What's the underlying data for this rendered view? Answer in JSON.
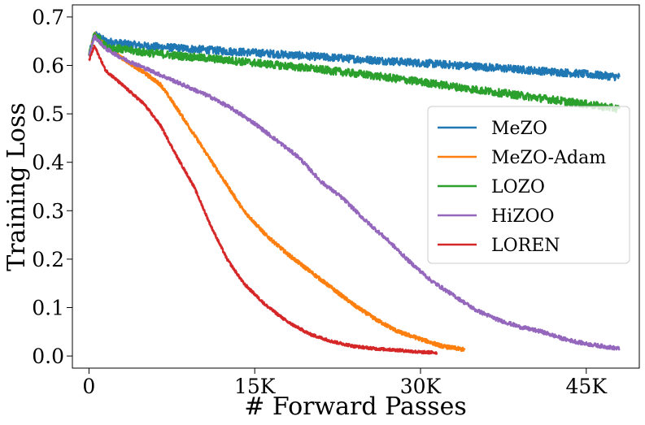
{
  "chart_data": {
    "type": "line",
    "title": "",
    "xlabel": "# Forward Passes",
    "ylabel": "Training Loss",
    "xlim": [
      -1500,
      49800
    ],
    "ylim": [
      -0.025,
      0.725
    ],
    "xticks": [
      0,
      15000,
      30000,
      45000
    ],
    "xtick_labels": [
      "0",
      "15K",
      "30K",
      "45K"
    ],
    "yticks": [
      0.0,
      0.1,
      0.2,
      0.3,
      0.4,
      0.5,
      0.6,
      0.7
    ],
    "ytick_labels": [
      "0.0",
      "0.1",
      "0.2",
      "0.3",
      "0.4",
      "0.5",
      "0.6",
      "0.7"
    ],
    "grid": false,
    "legend_position": "center-right",
    "series": [
      {
        "name": "MeZO",
        "color": "#1f77b4",
        "noise": 0.008,
        "x": [
          0,
          500,
          1500,
          3000,
          5000,
          8000,
          12000,
          16000,
          20000,
          25000,
          30000,
          35000,
          40000,
          45000,
          48000
        ],
        "y": [
          0.62,
          0.665,
          0.65,
          0.645,
          0.64,
          0.636,
          0.63,
          0.625,
          0.619,
          0.612,
          0.605,
          0.598,
          0.59,
          0.582,
          0.576
        ]
      },
      {
        "name": "MeZO-Adam",
        "color": "#ff7f0e",
        "noise": 0.004,
        "x": [
          0,
          500,
          1500,
          3000,
          5000,
          6500,
          8000,
          10000,
          12000,
          14000,
          16000,
          18000,
          20000,
          22000,
          24000,
          26000,
          28000,
          30000,
          32000,
          34000
        ],
        "y": [
          0.62,
          0.665,
          0.64,
          0.615,
          0.585,
          0.56,
          0.51,
          0.44,
          0.37,
          0.3,
          0.25,
          0.21,
          0.175,
          0.14,
          0.105,
          0.075,
          0.05,
          0.035,
          0.02,
          0.013
        ]
      },
      {
        "name": "LOZO",
        "color": "#2ca02c",
        "noise": 0.008,
        "x": [
          0,
          500,
          1500,
          3000,
          5000,
          8000,
          12000,
          16000,
          20000,
          25000,
          30000,
          35000,
          40000,
          45000,
          48000
        ],
        "y": [
          0.62,
          0.665,
          0.64,
          0.633,
          0.627,
          0.62,
          0.612,
          0.603,
          0.594,
          0.581,
          0.566,
          0.55,
          0.535,
          0.52,
          0.51
        ]
      },
      {
        "name": "HiZOO",
        "color": "#9467bd",
        "noise": 0.004,
        "x": [
          0,
          500,
          1500,
          3000,
          5000,
          7000,
          9000,
          11000,
          13000,
          15000,
          17000,
          19000,
          21000,
          23000,
          25000,
          27000,
          29000,
          31000,
          33000,
          35000,
          37000,
          39000,
          41000,
          43000,
          45000,
          48000
        ],
        "y": [
          0.62,
          0.66,
          0.635,
          0.615,
          0.595,
          0.575,
          0.555,
          0.535,
          0.51,
          0.48,
          0.445,
          0.41,
          0.36,
          0.325,
          0.28,
          0.24,
          0.195,
          0.155,
          0.125,
          0.095,
          0.075,
          0.06,
          0.05,
          0.035,
          0.025,
          0.015
        ]
      },
      {
        "name": "LOREN",
        "color": "#d62728",
        "noise": 0.003,
        "x": [
          0,
          500,
          1500,
          3000,
          5000,
          6500,
          8000,
          9500,
          11000,
          12500,
          14000,
          16000,
          18000,
          20000,
          22000,
          24000,
          26000,
          28000,
          30000,
          31500
        ],
        "y": [
          0.61,
          0.64,
          0.59,
          0.56,
          0.52,
          0.475,
          0.41,
          0.35,
          0.27,
          0.2,
          0.15,
          0.105,
          0.07,
          0.045,
          0.03,
          0.02,
          0.015,
          0.012,
          0.008,
          0.007
        ]
      }
    ]
  }
}
